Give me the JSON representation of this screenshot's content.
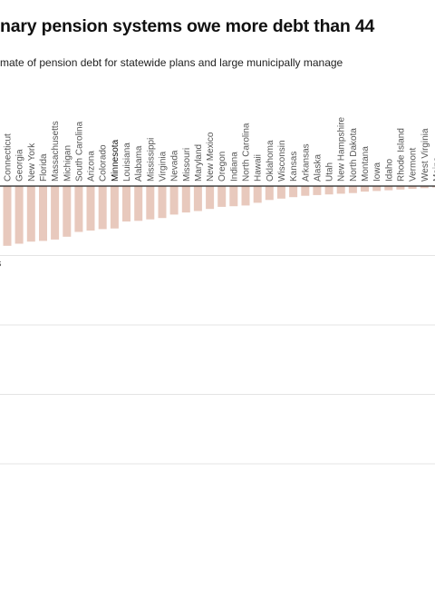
{
  "header": {
    "title": "nary pension systems owe more debt than 44",
    "subtitle": "mate of pension debt for statewide plans and large municipally manage"
  },
  "chart_data": {
    "type": "bar",
    "title": "nary pension systems owe more debt than 44",
    "subtitle": "mate of pension debt for statewide plans and large municipally manage",
    "xlabel": "",
    "ylabel": "",
    "highlight": "Minnesota",
    "colors": {
      "bar": "#e8c9bd",
      "axis": "#222222",
      "grid": "#e4e4e4",
      "label": "#555555",
      "highlight_label": "#111111"
    },
    "grid": true,
    "ytick_label_partial": "s",
    "categories": [
      "Connecticut",
      "Georgia",
      "New York",
      "Florida",
      "Massachusetts",
      "Michigan",
      "South Carolina",
      "Arizona",
      "Colorado",
      "Minnesota",
      "Louisiana",
      "Alabama",
      "Mississippi",
      "Virginia",
      "Nevada",
      "Missouri",
      "Maryland",
      "New Mexico",
      "Oregon",
      "Indiana",
      "North Carolina",
      "Hawaii",
      "Oklahoma",
      "Wisconsin",
      "Kansas",
      "Arkansas",
      "Alaska",
      "Utah",
      "New Hampshire",
      "North Dakota",
      "Montana",
      "Iowa",
      "Idaho",
      "Rhode Island",
      "Vermont",
      "West Virginia",
      "Maine"
    ],
    "values": [
      -0.86,
      -0.83,
      -0.8,
      -0.79,
      -0.77,
      -0.73,
      -0.66,
      -0.64,
      -0.62,
      -0.61,
      -0.51,
      -0.5,
      -0.48,
      -0.46,
      -0.41,
      -0.38,
      -0.36,
      -0.33,
      -0.3,
      -0.29,
      -0.28,
      -0.24,
      -0.2,
      -0.18,
      -0.16,
      -0.14,
      -0.13,
      -0.12,
      -0.11,
      -0.1,
      -0.08,
      -0.07,
      -0.06,
      -0.05,
      -0.04,
      -0.03,
      -0.02
    ],
    "ylim": [
      -4.1,
      0
    ]
  }
}
